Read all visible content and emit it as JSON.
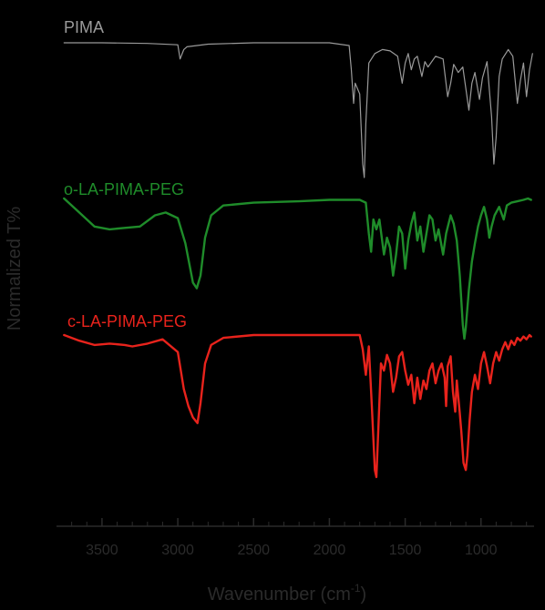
{
  "chart_data": {
    "type": "line",
    "title": "",
    "xlabel": "Wavenumber (cm",
    "xlabel_sup": "-1",
    "xlabel_close": ")",
    "ylabel": "Normalized T%",
    "xlim": [
      3800,
      650
    ],
    "x_reversed": true,
    "x_ticks": [
      3500,
      3000,
      2500,
      2000,
      1500,
      1000
    ],
    "x_tick_labels": [
      "3500",
      "3000",
      "2500",
      "2000",
      "1500",
      "1000"
    ],
    "y_ticks_shown": false,
    "grid": false,
    "legend": "none",
    "series": [
      {
        "name": "PIMA",
        "color": "#9a9a9a",
        "points": [
          [
            3750,
            1.0
          ],
          [
            3500,
            1.0
          ],
          [
            3200,
            0.995
          ],
          [
            3000,
            0.985
          ],
          [
            2985,
            0.88
          ],
          [
            2960,
            0.95
          ],
          [
            2940,
            0.97
          ],
          [
            2800,
            0.99
          ],
          [
            2500,
            1.0
          ],
          [
            2000,
            1.0
          ],
          [
            1870,
            0.98
          ],
          [
            1855,
            0.8
          ],
          [
            1840,
            0.55
          ],
          [
            1830,
            0.7
          ],
          [
            1800,
            0.62
          ],
          [
            1780,
            0.1
          ],
          [
            1770,
            0.0
          ],
          [
            1760,
            0.4
          ],
          [
            1740,
            0.85
          ],
          [
            1700,
            0.92
          ],
          [
            1650,
            0.95
          ],
          [
            1600,
            0.94
          ],
          [
            1550,
            0.9
          ],
          [
            1520,
            0.7
          ],
          [
            1500,
            0.85
          ],
          [
            1480,
            0.92
          ],
          [
            1460,
            0.8
          ],
          [
            1440,
            0.88
          ],
          [
            1420,
            0.9
          ],
          [
            1390,
            0.75
          ],
          [
            1370,
            0.86
          ],
          [
            1350,
            0.82
          ],
          [
            1300,
            0.9
          ],
          [
            1250,
            0.88
          ],
          [
            1220,
            0.6
          ],
          [
            1200,
            0.7
          ],
          [
            1180,
            0.84
          ],
          [
            1150,
            0.78
          ],
          [
            1120,
            0.82
          ],
          [
            1080,
            0.5
          ],
          [
            1060,
            0.7
          ],
          [
            1040,
            0.78
          ],
          [
            1010,
            0.58
          ],
          [
            990,
            0.74
          ],
          [
            960,
            0.86
          ],
          [
            930,
            0.45
          ],
          [
            915,
            0.1
          ],
          [
            900,
            0.3
          ],
          [
            880,
            0.75
          ],
          [
            860,
            0.88
          ],
          [
            820,
            0.95
          ],
          [
            790,
            0.9
          ],
          [
            760,
            0.55
          ],
          [
            740,
            0.72
          ],
          [
            720,
            0.85
          ],
          [
            700,
            0.6
          ],
          [
            680,
            0.8
          ],
          [
            660,
            0.92
          ]
        ]
      },
      {
        "name": "o-LA-PIMA-PEG",
        "color": "#1f8c2a",
        "points": [
          [
            3750,
            1.0
          ],
          [
            3650,
            0.9
          ],
          [
            3550,
            0.8
          ],
          [
            3450,
            0.78
          ],
          [
            3350,
            0.79
          ],
          [
            3250,
            0.8
          ],
          [
            3150,
            0.88
          ],
          [
            3080,
            0.9
          ],
          [
            3000,
            0.86
          ],
          [
            2950,
            0.68
          ],
          [
            2900,
            0.4
          ],
          [
            2875,
            0.36
          ],
          [
            2850,
            0.45
          ],
          [
            2820,
            0.72
          ],
          [
            2780,
            0.88
          ],
          [
            2700,
            0.95
          ],
          [
            2500,
            0.97
          ],
          [
            2200,
            0.98
          ],
          [
            2000,
            0.99
          ],
          [
            1800,
            0.99
          ],
          [
            1760,
            0.97
          ],
          [
            1740,
            0.75
          ],
          [
            1725,
            0.62
          ],
          [
            1710,
            0.85
          ],
          [
            1690,
            0.78
          ],
          [
            1670,
            0.85
          ],
          [
            1640,
            0.6
          ],
          [
            1620,
            0.72
          ],
          [
            1600,
            0.65
          ],
          [
            1580,
            0.45
          ],
          [
            1560,
            0.6
          ],
          [
            1540,
            0.8
          ],
          [
            1520,
            0.75
          ],
          [
            1500,
            0.5
          ],
          [
            1480,
            0.7
          ],
          [
            1460,
            0.82
          ],
          [
            1440,
            0.9
          ],
          [
            1420,
            0.7
          ],
          [
            1400,
            0.8
          ],
          [
            1380,
            0.62
          ],
          [
            1360,
            0.75
          ],
          [
            1340,
            0.88
          ],
          [
            1320,
            0.85
          ],
          [
            1300,
            0.7
          ],
          [
            1280,
            0.78
          ],
          [
            1250,
            0.6
          ],
          [
            1230,
            0.75
          ],
          [
            1200,
            0.88
          ],
          [
            1180,
            0.82
          ],
          [
            1160,
            0.7
          ],
          [
            1140,
            0.45
          ],
          [
            1120,
            0.1
          ],
          [
            1110,
            0.0
          ],
          [
            1100,
            0.08
          ],
          [
            1080,
            0.35
          ],
          [
            1060,
            0.55
          ],
          [
            1040,
            0.68
          ],
          [
            1020,
            0.8
          ],
          [
            1000,
            0.88
          ],
          [
            980,
            0.94
          ],
          [
            960,
            0.85
          ],
          [
            945,
            0.72
          ],
          [
            930,
            0.8
          ],
          [
            910,
            0.88
          ],
          [
            880,
            0.94
          ],
          [
            850,
            0.85
          ],
          [
            830,
            0.95
          ],
          [
            800,
            0.97
          ],
          [
            760,
            0.98
          ],
          [
            720,
            0.99
          ],
          [
            690,
            1.0
          ],
          [
            670,
            0.99
          ]
        ]
      },
      {
        "name": "c-LA-PIMA-PEG",
        "color": "#e8231c",
        "points": [
          [
            3750,
            1.0
          ],
          [
            3650,
            0.96
          ],
          [
            3550,
            0.93
          ],
          [
            3450,
            0.94
          ],
          [
            3350,
            0.93
          ],
          [
            3300,
            0.92
          ],
          [
            3200,
            0.94
          ],
          [
            3100,
            0.97
          ],
          [
            3000,
            0.88
          ],
          [
            2960,
            0.62
          ],
          [
            2930,
            0.5
          ],
          [
            2900,
            0.42
          ],
          [
            2870,
            0.38
          ],
          [
            2850,
            0.52
          ],
          [
            2820,
            0.8
          ],
          [
            2780,
            0.93
          ],
          [
            2700,
            0.98
          ],
          [
            2500,
            1.0
          ],
          [
            2000,
            1.0
          ],
          [
            1800,
            1.0
          ],
          [
            1780,
            0.9
          ],
          [
            1760,
            0.72
          ],
          [
            1740,
            0.92
          ],
          [
            1720,
            0.5
          ],
          [
            1700,
            0.05
          ],
          [
            1690,
            0.0
          ],
          [
            1675,
            0.4
          ],
          [
            1660,
            0.8
          ],
          [
            1640,
            0.75
          ],
          [
            1620,
            0.86
          ],
          [
            1600,
            0.8
          ],
          [
            1580,
            0.6
          ],
          [
            1560,
            0.7
          ],
          [
            1540,
            0.85
          ],
          [
            1520,
            0.88
          ],
          [
            1500,
            0.75
          ],
          [
            1480,
            0.65
          ],
          [
            1460,
            0.72
          ],
          [
            1440,
            0.52
          ],
          [
            1420,
            0.7
          ],
          [
            1400,
            0.55
          ],
          [
            1380,
            0.68
          ],
          [
            1360,
            0.62
          ],
          [
            1340,
            0.75
          ],
          [
            1320,
            0.8
          ],
          [
            1300,
            0.66
          ],
          [
            1280,
            0.75
          ],
          [
            1260,
            0.8
          ],
          [
            1240,
            0.7
          ],
          [
            1230,
            0.5
          ],
          [
            1220,
            0.78
          ],
          [
            1200,
            0.85
          ],
          [
            1185,
            0.6
          ],
          [
            1170,
            0.46
          ],
          [
            1160,
            0.68
          ],
          [
            1140,
            0.45
          ],
          [
            1130,
            0.32
          ],
          [
            1115,
            0.1
          ],
          [
            1100,
            0.05
          ],
          [
            1090,
            0.15
          ],
          [
            1075,
            0.4
          ],
          [
            1060,
            0.6
          ],
          [
            1040,
            0.72
          ],
          [
            1020,
            0.62
          ],
          [
            1000,
            0.8
          ],
          [
            980,
            0.88
          ],
          [
            960,
            0.78
          ],
          [
            940,
            0.66
          ],
          [
            920,
            0.8
          ],
          [
            900,
            0.88
          ],
          [
            880,
            0.82
          ],
          [
            860,
            0.9
          ],
          [
            840,
            0.95
          ],
          [
            820,
            0.9
          ],
          [
            800,
            0.96
          ],
          [
            780,
            0.93
          ],
          [
            760,
            0.98
          ],
          [
            740,
            0.96
          ],
          [
            720,
            0.99
          ],
          [
            700,
            0.97
          ],
          [
            680,
            1.0
          ],
          [
            670,
            0.99
          ]
        ]
      }
    ]
  }
}
